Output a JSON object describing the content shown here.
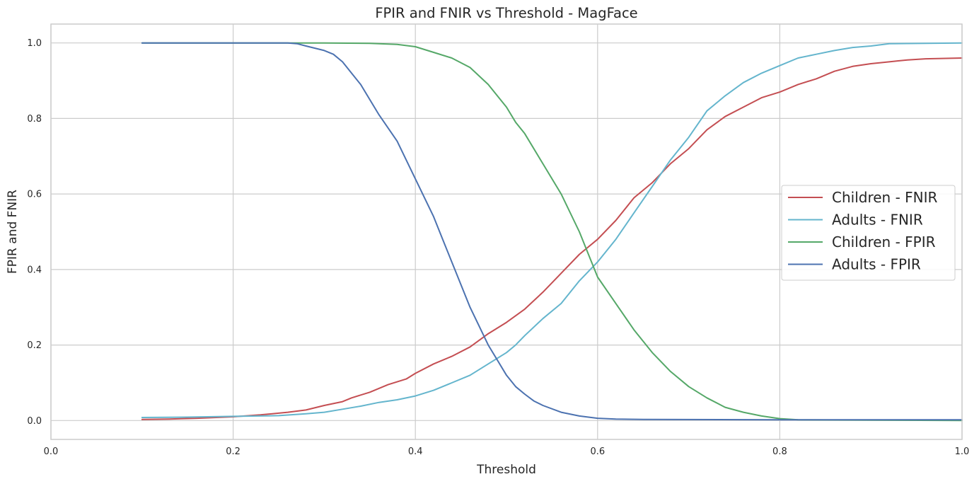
{
  "chart_data": {
    "type": "line",
    "title": "FPIR and FNIR vs Threshold - MagFace",
    "xlabel": "Threshold",
    "ylabel": "FPIR and FNIR",
    "xlim": [
      0.0,
      1.0
    ],
    "ylim": [
      -0.05,
      1.05
    ],
    "xticks": [
      0.0,
      0.2,
      0.4,
      0.6,
      0.8,
      1.0
    ],
    "xtick_labels": [
      "0.0",
      "0.2",
      "0.4",
      "0.6",
      "0.8",
      "1.0"
    ],
    "yticks": [
      0.0,
      0.2,
      0.4,
      0.6,
      0.8,
      1.0
    ],
    "ytick_labels": [
      "0.0",
      "0.2",
      "0.4",
      "0.6",
      "0.8",
      "1.0"
    ],
    "grid": true,
    "legend_position": "center-right",
    "series": [
      {
        "name": "Children - FNIR",
        "color": "#c44e52",
        "points": [
          [
            0.1,
            0.003
          ],
          [
            0.13,
            0.004
          ],
          [
            0.16,
            0.006
          ],
          [
            0.2,
            0.01
          ],
          [
            0.23,
            0.015
          ],
          [
            0.26,
            0.022
          ],
          [
            0.28,
            0.028
          ],
          [
            0.3,
            0.04
          ],
          [
            0.32,
            0.05
          ],
          [
            0.33,
            0.06
          ],
          [
            0.35,
            0.075
          ],
          [
            0.37,
            0.095
          ],
          [
            0.39,
            0.11
          ],
          [
            0.4,
            0.125
          ],
          [
            0.42,
            0.15
          ],
          [
            0.44,
            0.17
          ],
          [
            0.46,
            0.195
          ],
          [
            0.48,
            0.23
          ],
          [
            0.5,
            0.26
          ],
          [
            0.52,
            0.295
          ],
          [
            0.54,
            0.34
          ],
          [
            0.56,
            0.39
          ],
          [
            0.58,
            0.44
          ],
          [
            0.6,
            0.48
          ],
          [
            0.62,
            0.53
          ],
          [
            0.64,
            0.59
          ],
          [
            0.66,
            0.63
          ],
          [
            0.68,
            0.68
          ],
          [
            0.7,
            0.72
          ],
          [
            0.72,
            0.77
          ],
          [
            0.74,
            0.805
          ],
          [
            0.76,
            0.83
          ],
          [
            0.78,
            0.855
          ],
          [
            0.8,
            0.87
          ],
          [
            0.82,
            0.89
          ],
          [
            0.84,
            0.905
          ],
          [
            0.86,
            0.925
          ],
          [
            0.88,
            0.938
          ],
          [
            0.9,
            0.945
          ],
          [
            0.92,
            0.95
          ],
          [
            0.94,
            0.955
          ],
          [
            0.96,
            0.958
          ],
          [
            1.0,
            0.96
          ]
        ]
      },
      {
        "name": "Adults - FNIR",
        "color": "#64b5cd",
        "points": [
          [
            0.1,
            0.008
          ],
          [
            0.15,
            0.009
          ],
          [
            0.2,
            0.011
          ],
          [
            0.25,
            0.013
          ],
          [
            0.28,
            0.018
          ],
          [
            0.3,
            0.022
          ],
          [
            0.32,
            0.03
          ],
          [
            0.34,
            0.038
          ],
          [
            0.36,
            0.048
          ],
          [
            0.38,
            0.055
          ],
          [
            0.4,
            0.065
          ],
          [
            0.42,
            0.08
          ],
          [
            0.44,
            0.1
          ],
          [
            0.46,
            0.12
          ],
          [
            0.48,
            0.15
          ],
          [
            0.5,
            0.18
          ],
          [
            0.51,
            0.2
          ],
          [
            0.52,
            0.225
          ],
          [
            0.54,
            0.27
          ],
          [
            0.56,
            0.31
          ],
          [
            0.58,
            0.37
          ],
          [
            0.6,
            0.42
          ],
          [
            0.62,
            0.48
          ],
          [
            0.64,
            0.55
          ],
          [
            0.66,
            0.62
          ],
          [
            0.68,
            0.69
          ],
          [
            0.7,
            0.75
          ],
          [
            0.72,
            0.82
          ],
          [
            0.74,
            0.86
          ],
          [
            0.76,
            0.895
          ],
          [
            0.78,
            0.92
          ],
          [
            0.8,
            0.94
          ],
          [
            0.82,
            0.96
          ],
          [
            0.84,
            0.97
          ],
          [
            0.86,
            0.98
          ],
          [
            0.88,
            0.988
          ],
          [
            0.9,
            0.992
          ],
          [
            0.92,
            0.998
          ],
          [
            1.0,
            1.0
          ]
        ]
      },
      {
        "name": "Children - FPIR",
        "color": "#55a868",
        "points": [
          [
            0.1,
            1.0
          ],
          [
            0.3,
            1.0
          ],
          [
            0.35,
            0.999
          ],
          [
            0.38,
            0.996
          ],
          [
            0.4,
            0.99
          ],
          [
            0.42,
            0.975
          ],
          [
            0.44,
            0.96
          ],
          [
            0.46,
            0.935
          ],
          [
            0.48,
            0.89
          ],
          [
            0.5,
            0.83
          ],
          [
            0.51,
            0.79
          ],
          [
            0.52,
            0.76
          ],
          [
            0.54,
            0.68
          ],
          [
            0.56,
            0.6
          ],
          [
            0.58,
            0.5
          ],
          [
            0.59,
            0.44
          ],
          [
            0.6,
            0.38
          ],
          [
            0.62,
            0.31
          ],
          [
            0.64,
            0.24
          ],
          [
            0.66,
            0.18
          ],
          [
            0.68,
            0.13
          ],
          [
            0.7,
            0.09
          ],
          [
            0.72,
            0.06
          ],
          [
            0.74,
            0.035
          ],
          [
            0.76,
            0.022
          ],
          [
            0.78,
            0.012
          ],
          [
            0.8,
            0.005
          ],
          [
            0.82,
            0.002
          ],
          [
            1.0,
            0.0
          ]
        ]
      },
      {
        "name": "Adults - FPIR",
        "color": "#4c72b0",
        "points": [
          [
            0.1,
            1.0
          ],
          [
            0.26,
            1.0
          ],
          [
            0.27,
            0.998
          ],
          [
            0.28,
            0.992
          ],
          [
            0.3,
            0.98
          ],
          [
            0.31,
            0.97
          ],
          [
            0.32,
            0.95
          ],
          [
            0.33,
            0.92
          ],
          [
            0.34,
            0.89
          ],
          [
            0.36,
            0.81
          ],
          [
            0.38,
            0.74
          ],
          [
            0.4,
            0.64
          ],
          [
            0.42,
            0.54
          ],
          [
            0.43,
            0.48
          ],
          [
            0.44,
            0.42
          ],
          [
            0.45,
            0.36
          ],
          [
            0.46,
            0.3
          ],
          [
            0.47,
            0.25
          ],
          [
            0.48,
            0.2
          ],
          [
            0.49,
            0.16
          ],
          [
            0.5,
            0.12
          ],
          [
            0.51,
            0.09
          ],
          [
            0.52,
            0.07
          ],
          [
            0.53,
            0.052
          ],
          [
            0.54,
            0.04
          ],
          [
            0.56,
            0.022
          ],
          [
            0.58,
            0.012
          ],
          [
            0.6,
            0.006
          ],
          [
            0.62,
            0.004
          ],
          [
            0.65,
            0.003
          ],
          [
            0.8,
            0.002
          ],
          [
            1.0,
            0.002
          ]
        ]
      }
    ]
  }
}
